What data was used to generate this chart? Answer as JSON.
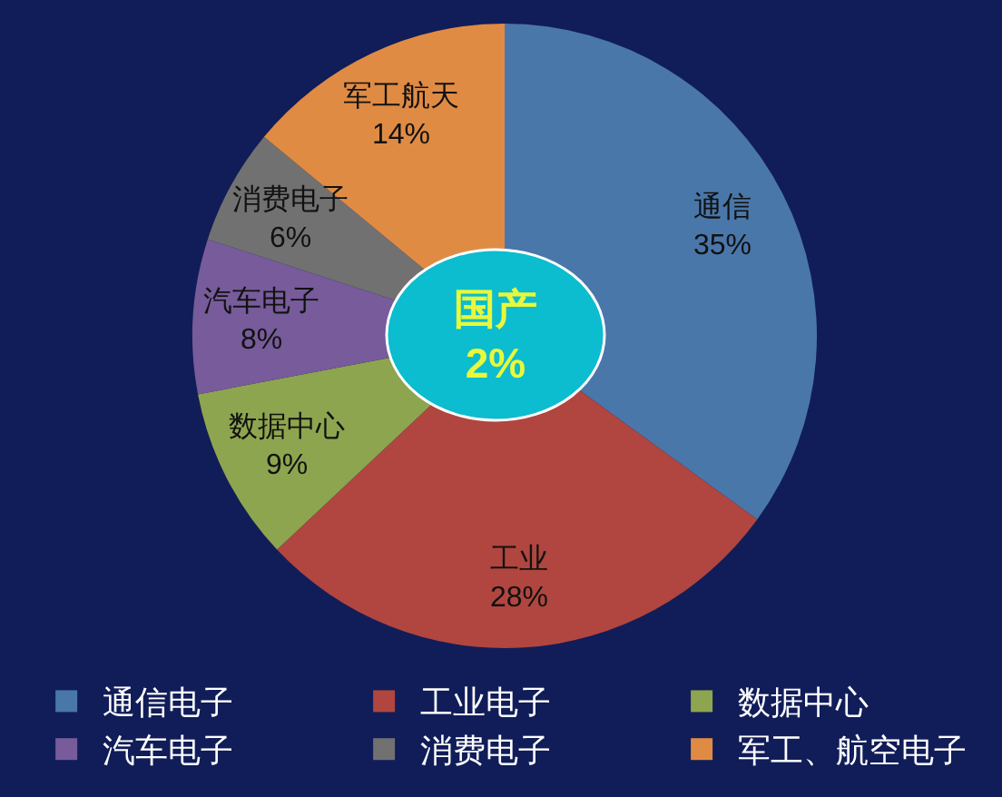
{
  "chart_data": {
    "type": "pie",
    "categories": [
      "通信电子",
      "工业电子",
      "数据中心",
      "汽车电子",
      "消费电子",
      "军工、航空电子"
    ],
    "values": [
      35,
      28,
      9,
      8,
      6,
      14
    ],
    "colors": [
      "#4a77aa",
      "#b0463f",
      "#8ea54f",
      "#775b9a",
      "#717171",
      "#e08b44"
    ],
    "value_labels": [
      "通信\n35%",
      "工业\n28%",
      "数据中心\n9%",
      "汽车电子\n8%",
      "消费电子\n6%",
      "军工航天\n14%"
    ],
    "annotations": [
      "国产\n2%"
    ],
    "legend": "bottom"
  }
}
